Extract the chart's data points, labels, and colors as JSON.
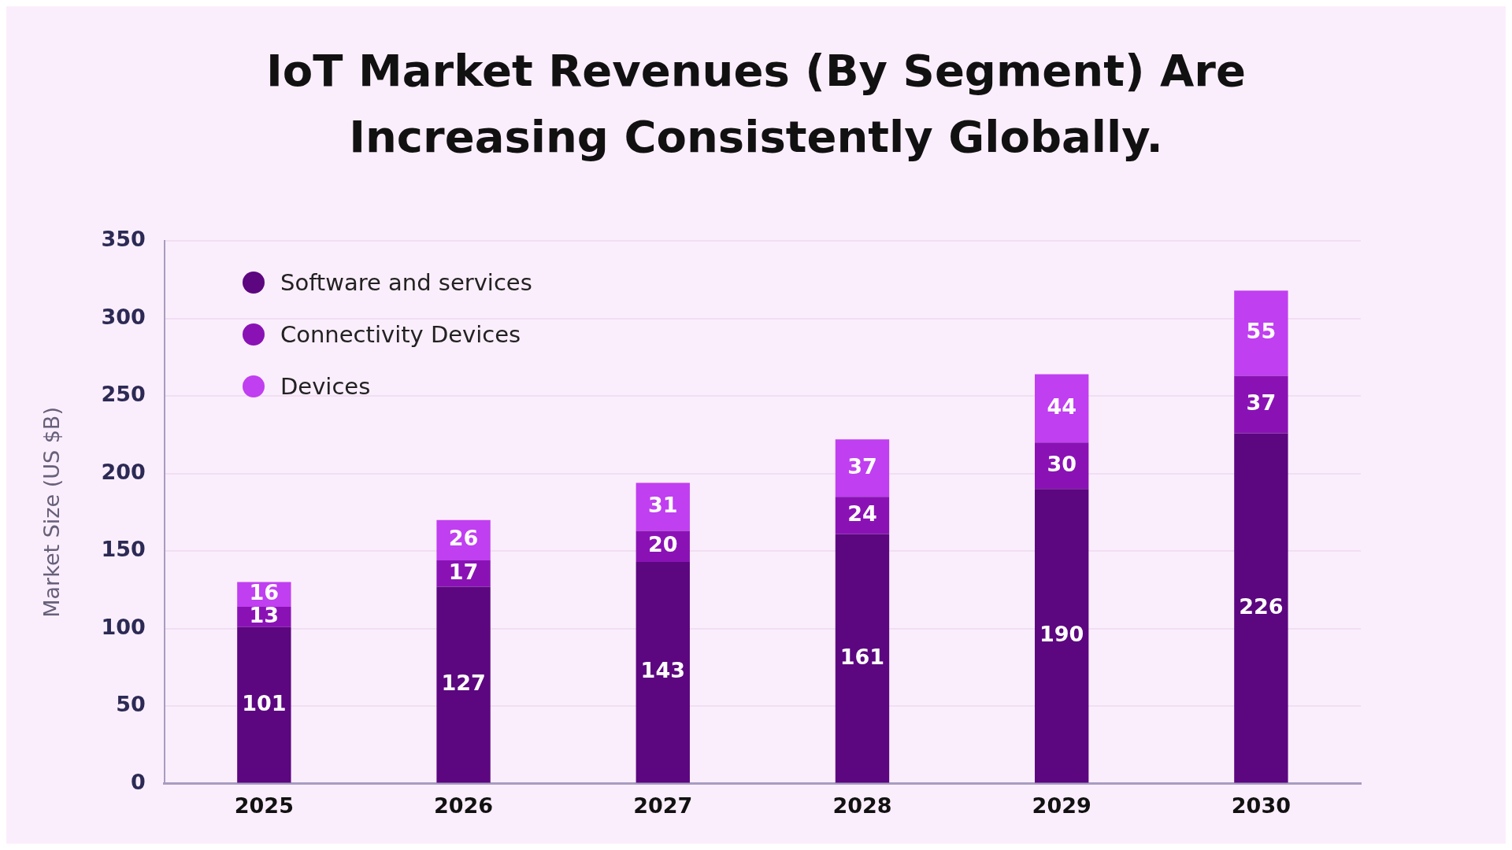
{
  "chart_data": {
    "type": "bar",
    "title": "IoT Market Revenues (By Segment) Are Increasing Consistently Globally.",
    "ylabel": "Market Size (US $B)",
    "categories": [
      "2025",
      "2026",
      "2027",
      "2028",
      "2029",
      "2030"
    ],
    "stacked": true,
    "data_labels": true,
    "legend": "top left",
    "grid": "y",
    "ylim": [
      0,
      350
    ],
    "yticks": [
      0,
      50,
      100,
      150,
      200,
      250,
      300,
      350
    ],
    "series": [
      {
        "name": "Software and services",
        "color": "#5c0680",
        "values": [
          101,
          127,
          143,
          161,
          190,
          226
        ]
      },
      {
        "name": "Connectivity Devices",
        "color": "#8a12b5",
        "values": [
          13,
          17,
          20,
          24,
          30,
          37
        ]
      },
      {
        "name": "Devices",
        "color": "#c03ff0",
        "values": [
          16,
          26,
          31,
          37,
          44,
          55
        ]
      }
    ]
  }
}
